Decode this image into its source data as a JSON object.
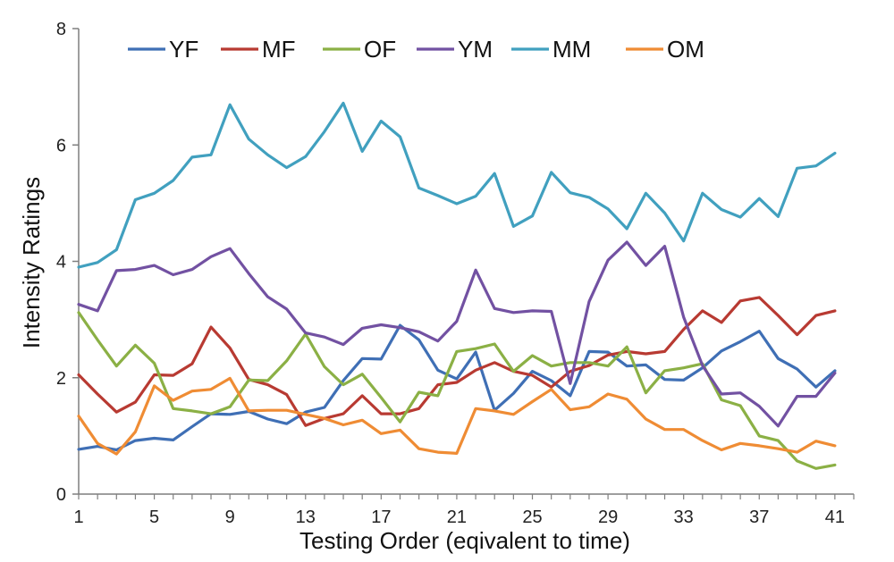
{
  "chart_data": {
    "type": "line",
    "title": "",
    "xlabel": "Testing Order (eqivalent to time)",
    "ylabel": "Intensity Ratings",
    "xlim": [
      1,
      42
    ],
    "ylim": [
      0,
      8
    ],
    "x_ticks": [
      1,
      5,
      9,
      13,
      17,
      21,
      25,
      29,
      33,
      37,
      41
    ],
    "y_ticks": [
      0,
      2,
      4,
      6,
      8
    ],
    "grid": false,
    "legend_position": "top",
    "x": [
      1,
      2,
      3,
      4,
      5,
      6,
      7,
      8,
      9,
      10,
      11,
      12,
      13,
      14,
      15,
      16,
      17,
      18,
      19,
      20,
      21,
      22,
      23,
      24,
      25,
      26,
      27,
      28,
      29,
      30,
      31,
      32,
      33,
      34,
      35,
      36,
      37,
      38,
      39,
      40,
      41
    ],
    "series": [
      {
        "name": "YF",
        "color": "#3f6fb5",
        "values": [
          0.77,
          0.82,
          0.76,
          0.92,
          0.96,
          0.93,
          1.16,
          1.38,
          1.37,
          1.42,
          1.29,
          1.21,
          1.41,
          1.49,
          1.95,
          2.33,
          2.32,
          2.9,
          2.65,
          2.13,
          1.98,
          2.44,
          1.44,
          1.73,
          2.11,
          1.95,
          1.69,
          2.45,
          2.44,
          2.2,
          2.22,
          1.97,
          1.96,
          2.17,
          2.46,
          2.62,
          2.8,
          2.33,
          2.15,
          1.84,
          2.12
        ]
      },
      {
        "name": "MF",
        "color": "#b83a32",
        "values": [
          2.05,
          1.72,
          1.41,
          1.58,
          2.05,
          2.04,
          2.24,
          2.87,
          2.51,
          1.97,
          1.88,
          1.71,
          1.18,
          1.3,
          1.38,
          1.69,
          1.38,
          1.38,
          1.47,
          1.88,
          1.92,
          2.13,
          2.26,
          2.11,
          2.04,
          1.84,
          2.11,
          2.21,
          2.39,
          2.45,
          2.41,
          2.45,
          2.83,
          3.15,
          2.95,
          3.32,
          3.38,
          3.07,
          2.74,
          3.07,
          3.15
        ]
      },
      {
        "name": "OF",
        "color": "#8bb045",
        "values": [
          3.12,
          2.65,
          2.2,
          2.56,
          2.25,
          1.47,
          1.43,
          1.38,
          1.5,
          1.96,
          1.95,
          2.29,
          2.75,
          2.19,
          1.88,
          2.06,
          1.66,
          1.24,
          1.75,
          1.69,
          2.45,
          2.5,
          2.58,
          2.11,
          2.38,
          2.2,
          2.26,
          2.26,
          2.2,
          2.53,
          1.74,
          2.12,
          2.17,
          2.24,
          1.62,
          1.52,
          1.0,
          0.92,
          0.57,
          0.44,
          0.5
        ]
      },
      {
        "name": "YM",
        "color": "#7251a2",
        "values": [
          3.26,
          3.15,
          3.84,
          3.86,
          3.93,
          3.77,
          3.86,
          4.08,
          4.22,
          3.79,
          3.39,
          3.18,
          2.77,
          2.7,
          2.57,
          2.85,
          2.91,
          2.86,
          2.79,
          2.63,
          2.97,
          3.85,
          3.19,
          3.12,
          3.15,
          3.14,
          1.9,
          3.31,
          4.02,
          4.33,
          3.93,
          4.26,
          3.04,
          2.21,
          1.72,
          1.74,
          1.51,
          1.17,
          1.68,
          1.68,
          2.08
        ]
      },
      {
        "name": "MM",
        "color": "#41a0bf",
        "values": [
          3.9,
          3.98,
          4.2,
          5.06,
          5.17,
          5.39,
          5.79,
          5.83,
          6.69,
          6.1,
          5.83,
          5.61,
          5.8,
          6.23,
          6.72,
          5.89,
          6.41,
          6.14,
          5.26,
          5.13,
          4.99,
          5.12,
          5.51,
          4.6,
          4.78,
          5.53,
          5.18,
          5.1,
          4.9,
          4.56,
          5.17,
          4.83,
          4.35,
          5.17,
          4.89,
          4.76,
          5.08,
          4.77,
          5.6,
          5.64,
          5.86
        ]
      },
      {
        "name": "OM",
        "color": "#ef8c34",
        "values": [
          1.34,
          0.87,
          0.69,
          1.07,
          1.86,
          1.61,
          1.77,
          1.8,
          1.99,
          1.43,
          1.44,
          1.44,
          1.37,
          1.3,
          1.19,
          1.27,
          1.04,
          1.1,
          0.78,
          0.72,
          0.7,
          1.47,
          1.43,
          1.37,
          1.59,
          1.8,
          1.45,
          1.5,
          1.72,
          1.63,
          1.29,
          1.11,
          1.11,
          0.92,
          0.76,
          0.87,
          0.83,
          0.78,
          0.72,
          0.91,
          0.83
        ]
      }
    ]
  }
}
